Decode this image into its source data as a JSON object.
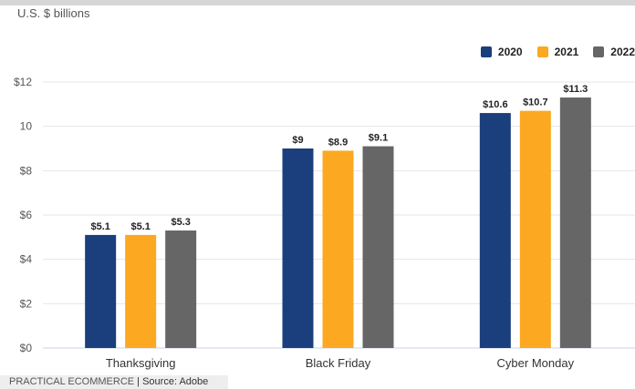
{
  "subtitle": "U.S. $ billions",
  "footer": {
    "brand": "PRACTICAL ECOMMERCE",
    "separator": " | ",
    "source": "Source: Adobe"
  },
  "legend": [
    {
      "label": "2020",
      "color": "#1a3f7c"
    },
    {
      "label": "2021",
      "color": "#fca821"
    },
    {
      "label": "2022",
      "color": "#666666"
    }
  ],
  "chart_data": {
    "type": "bar",
    "categories": [
      "Thanksgiving",
      "Black Friday",
      "Cyber Monday"
    ],
    "series": [
      {
        "name": "2020",
        "color": "#1a3f7c",
        "values": [
          5.1,
          9,
          10.6
        ],
        "labels": [
          "$5.1",
          "$9",
          "$10.6"
        ]
      },
      {
        "name": "2021",
        "color": "#fca821",
        "values": [
          5.1,
          8.9,
          10.7
        ],
        "labels": [
          "$5.1",
          "$8.9",
          "$10.7"
        ]
      },
      {
        "name": "2022",
        "color": "#666666",
        "values": [
          5.3,
          9.1,
          11.3
        ],
        "labels": [
          "$5.3",
          "$9.1",
          "$11.3"
        ]
      }
    ],
    "y_ticks": [
      {
        "value": 0,
        "label": "$0"
      },
      {
        "value": 2,
        "label": "$2"
      },
      {
        "value": 4,
        "label": "$4"
      },
      {
        "value": 6,
        "label": "$6"
      },
      {
        "value": 8,
        "label": "$8"
      },
      {
        "value": 10,
        "label": "10"
      },
      {
        "value": 12,
        "label": "$12"
      }
    ],
    "ylim": [
      0,
      12
    ],
    "ylabel": "U.S. $ billions",
    "grid": true,
    "legend_position": "top-right"
  }
}
